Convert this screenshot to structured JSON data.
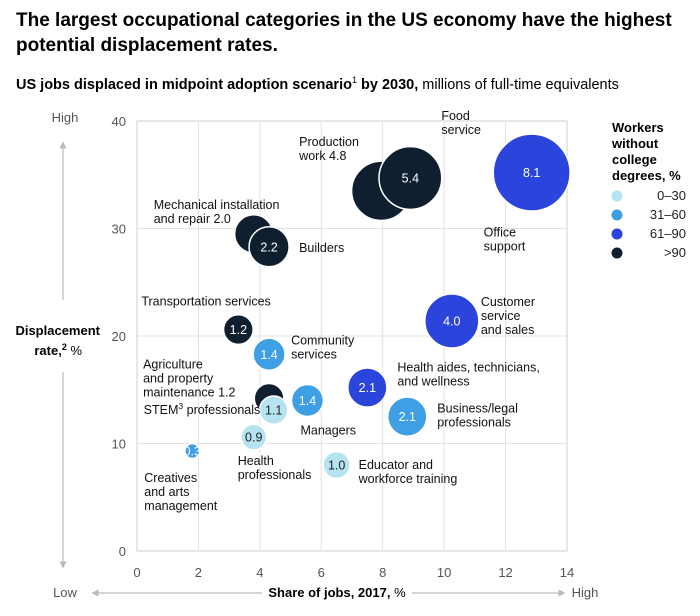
{
  "title": "The largest occupational categories in the US economy have the highest potential displacement rates.",
  "subtitle": {
    "bold": "US jobs displaced in midpoint adoption scenario",
    "sup": "1",
    "bold2": " by 2030,",
    "rest": " millions of full-time equivalents"
  },
  "colors": {
    "0-30": "#b5e3f0",
    "31-60": "#3e9fe4",
    "61-90": "#2b45dc",
    ">90": "#0f1f2f"
  },
  "legend": {
    "title_lines": [
      "Workers",
      "without",
      "college",
      "degrees, %"
    ],
    "items": [
      {
        "key": "0-30",
        "label": "0–30"
      },
      {
        "key": "31-60",
        "label": "31–60"
      },
      {
        "key": "61-90",
        "label": "61–90"
      },
      {
        "key": ">90",
        "label": ">90"
      }
    ]
  },
  "chart_data": {
    "type": "scatter",
    "title": "The largest occupational categories in the US economy have the highest potential displacement rates.",
    "xlabel": "Share of jobs, 2017, %",
    "xlabel_bold": "Share of jobs, 2017,",
    "xlabel_unit": " %",
    "ylabel_bold": "Displacement",
    "ylabel_line2": "rate,",
    "ylabel_sup": "2",
    "ylabel_unit": " %",
    "xlim": [
      0,
      14
    ],
    "ylim": [
      0,
      40
    ],
    "xticks": [
      0,
      2,
      4,
      6,
      8,
      10,
      12,
      14
    ],
    "yticks": [
      0,
      10,
      20,
      30,
      40
    ],
    "x_low": "Low",
    "x_high": "High",
    "y_low": "Low",
    "y_high": "High",
    "size_unit": "millions of full-time equivalents",
    "points": [
      {
        "name": "Production work",
        "label_lines": [
          "Production",
          "work 4.8"
        ],
        "x": 7.95,
        "y": 33.5,
        "value": 4.8,
        "show_value": false,
        "category": ">90"
      },
      {
        "name": "Food service",
        "label_lines": [
          "Food",
          "service"
        ],
        "x": 8.9,
        "y": 34.7,
        "value": 5.4,
        "show_value": true,
        "category": ">90"
      },
      {
        "name": "Office support",
        "label_lines": [
          "Office",
          "support"
        ],
        "x": 12.85,
        "y": 35.2,
        "value": 8.1,
        "show_value": true,
        "category": "61-90"
      },
      {
        "name": "Mechanical installation and repair",
        "label_lines": [
          "Mechanical installation",
          "and repair 2.0"
        ],
        "x": 3.8,
        "y": 29.5,
        "value": 2.0,
        "show_value": false,
        "category": ">90"
      },
      {
        "name": "Builders",
        "label_lines": [
          "Builders"
        ],
        "x": 4.3,
        "y": 28.3,
        "value": 2.2,
        "show_value": true,
        "category": ">90"
      },
      {
        "name": "Transportation services",
        "label_lines": [
          "Transportation services"
        ],
        "x": 3.3,
        "y": 20.6,
        "value": 1.2,
        "show_value": true,
        "category": ">90"
      },
      {
        "name": "Community services",
        "label_lines": [
          "Community",
          "services"
        ],
        "x": 4.3,
        "y": 18.3,
        "value": 1.4,
        "show_value": true,
        "category": "31-60"
      },
      {
        "name": "Customer service and sales",
        "label_lines": [
          "Customer",
          "service",
          "and sales"
        ],
        "x": 10.25,
        "y": 21.4,
        "value": 4.0,
        "show_value": true,
        "category": "61-90"
      },
      {
        "name": "Agriculture and property maintenance",
        "label_lines": [
          "Agriculture",
          "and property",
          "maintenance 1.2"
        ],
        "x": 4.3,
        "y": 14.2,
        "value": 1.2,
        "show_value": false,
        "category": ">90"
      },
      {
        "name": "STEM professionals",
        "label_lines": [
          "STEM",
          "3",
          " professionals"
        ],
        "x": 4.45,
        "y": 13.1,
        "value": 1.1,
        "show_value": true,
        "category": "0-30"
      },
      {
        "name": "Managers",
        "label_lines": [
          "Managers"
        ],
        "x": 5.55,
        "y": 14.0,
        "value": 1.4,
        "show_value": true,
        "category": "31-60"
      },
      {
        "name": "Health aides, technicians, and wellness",
        "label_lines": [
          "Health aides, technicians,",
          "and wellness"
        ],
        "x": 7.5,
        "y": 15.2,
        "value": 2.1,
        "show_value": true,
        "category": "61-90"
      },
      {
        "name": "Business/legal professionals",
        "label_lines": [
          "Business/legal",
          "professionals"
        ],
        "x": 8.8,
        "y": 12.5,
        "value": 2.1,
        "show_value": true,
        "category": "31-60"
      },
      {
        "name": "Health professionals",
        "label_lines": [
          "Health",
          "professionals"
        ],
        "x": 3.8,
        "y": 10.6,
        "value": 0.9,
        "show_value": true,
        "category": "0-30"
      },
      {
        "name": "Creatives and arts management",
        "label_lines": [
          "Creatives",
          "and arts",
          "management"
        ],
        "x": 1.8,
        "y": 9.3,
        "value": 0.3,
        "show_value": true,
        "category": "31-60"
      },
      {
        "name": "Educator and workforce training",
        "label_lines": [
          "Educator and",
          "workforce training"
        ],
        "x": 6.5,
        "y": 8.0,
        "value": 1.0,
        "show_value": true,
        "category": "0-30"
      }
    ]
  }
}
